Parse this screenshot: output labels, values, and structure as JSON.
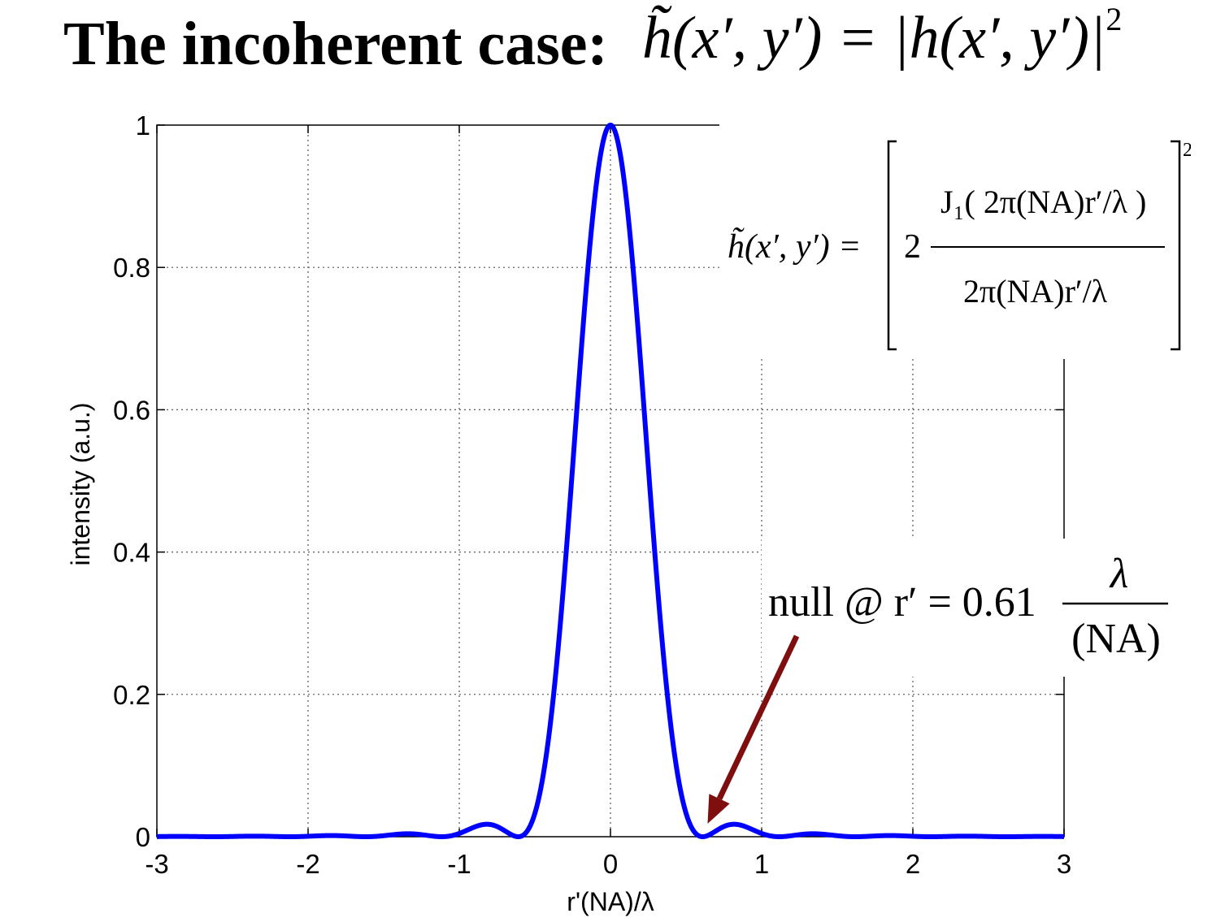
{
  "title": {
    "lead": "The incoherent case:",
    "equation": "h̃(x′, y′) = |h(x′, y′)|",
    "equation_power": "2"
  },
  "formula": {
    "lhs": "h̃(x′, y′) =",
    "coef": "2",
    "numerator": "J₁( 2π(NA)r′/λ )",
    "denominator": "2π(NA)r′/λ",
    "power": "2"
  },
  "annotation": {
    "text": "null @ r′ = 0.61",
    "fraction_num": "λ",
    "fraction_den": "(NA)",
    "arrow_color": "#7f0f0f",
    "target": {
      "x": 0.61,
      "y": 0.0
    }
  },
  "chart_data": {
    "type": "line",
    "xlabel": "r'(NA)/λ",
    "ylabel": "intensity (a.u.)",
    "xlim": [
      -3,
      3
    ],
    "ylim": [
      0,
      1
    ],
    "xticks": [
      "-3",
      "-2",
      "-1",
      "0",
      "1",
      "2",
      "3"
    ],
    "yticks": [
      "0",
      "0.2",
      "0.4",
      "0.6",
      "0.8",
      "1"
    ],
    "grid": true,
    "series": [
      {
        "color": "#0000ff",
        "function": "[2·J1(2πx)/(2πx)]^2",
        "x": [
          -3.0,
          -2.5,
          -2.0,
          -1.64,
          -1.5,
          -1.12,
          -1.0,
          -0.82,
          -0.61,
          -0.5,
          -0.4,
          -0.3,
          -0.2,
          -0.1,
          0.0,
          0.1,
          0.2,
          0.3,
          0.4,
          0.5,
          0.61,
          0.82,
          1.0,
          1.12,
          1.5,
          1.64,
          2.0,
          2.5,
          3.0
        ],
        "values": [
          0.0003,
          0.0,
          0.0005,
          0.0,
          0.0007,
          0.0,
          0.0026,
          0.0175,
          0.0,
          0.0144,
          0.1198,
          0.3652,
          0.6765,
          0.9104,
          1.0,
          0.9104,
          0.6765,
          0.3652,
          0.1198,
          0.0144,
          0.0,
          0.0175,
          0.0026,
          0.0,
          0.0007,
          0.0,
          0.0005,
          0.0,
          0.0003
        ]
      }
    ]
  }
}
